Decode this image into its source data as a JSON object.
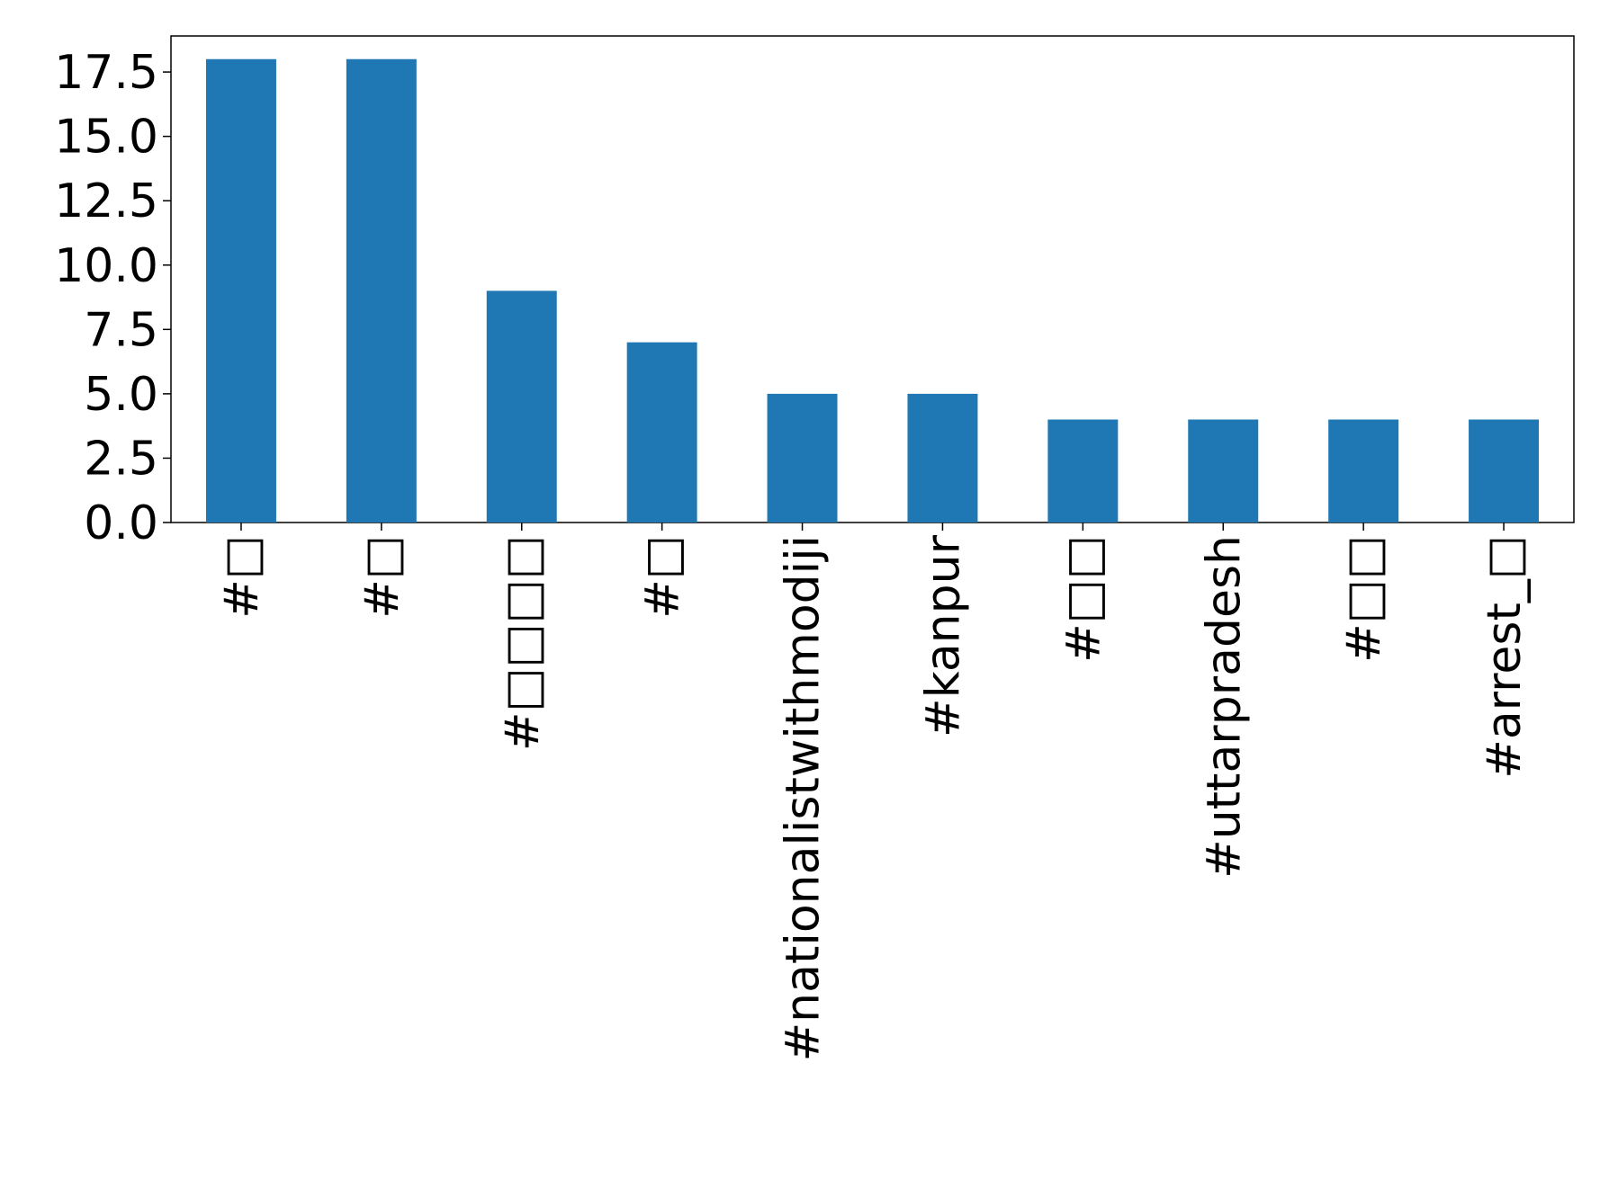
{
  "chart_data": {
    "type": "bar",
    "categories": [
      "#□",
      "#□",
      "#□□□□",
      "#□",
      "#nationalistwithmodiji",
      "#kanpur",
      "#□□",
      "#uttarpradesh",
      "#□□",
      "#arrest_□"
    ],
    "values": [
      18,
      18,
      9,
      7,
      5,
      5,
      4,
      4,
      4,
      4
    ],
    "color": "#1f77b4",
    "ylim": [
      0,
      18.9
    ],
    "yticks": [
      {
        "value": 0,
        "label": "0.0"
      },
      2.5,
      {
        "value": 5,
        "label": "5.0"
      },
      7.5,
      {
        "value": 10,
        "label": "10.0"
      },
      12.5,
      {
        "value": 15,
        "label": "15.0"
      },
      17.5
    ],
    "grid": false
  }
}
